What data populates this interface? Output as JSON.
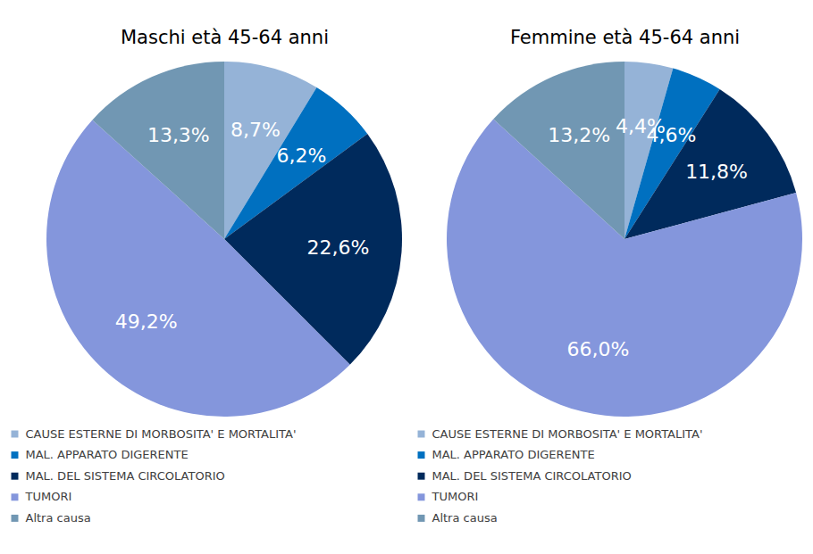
{
  "chart_data": [
    {
      "type": "pie",
      "title": "Maschi età 45-64 anni",
      "categories": [
        "CAUSE ESTERNE DI MORBOSITA' E MORTALITA'",
        "MAL. APPARATO DIGERENTE",
        "MAL. DEL SISTEMA CIRCOLATORIO",
        "TUMORI",
        "Altra causa"
      ],
      "values": [
        8.7,
        6.2,
        22.6,
        49.2,
        13.3
      ],
      "value_labels": [
        "8,7%",
        "6,2%",
        "22,6%",
        "49,2%",
        "13,3%"
      ],
      "colors": [
        "#95b3d7",
        "#0070c0",
        "#002a5c",
        "#8496dc",
        "#7197b3"
      ],
      "data_labels": true,
      "legend": "bottom"
    },
    {
      "type": "pie",
      "title": "Femmine età 45-64 anni",
      "categories": [
        "CAUSE ESTERNE DI MORBOSITA' E MORTALITA'",
        "MAL. APPARATO DIGERENTE",
        "MAL. DEL SISTEMA CIRCOLATORIO",
        "TUMORI",
        "Altra causa"
      ],
      "values": [
        4.4,
        4.6,
        11.8,
        66.0,
        13.2
      ],
      "value_labels": [
        "4,4%",
        "4,6%",
        "11,8%",
        "66,0%",
        "13,2%"
      ],
      "colors": [
        "#95b3d7",
        "#0070c0",
        "#002a5c",
        "#8496dc",
        "#7197b3"
      ],
      "data_labels": true,
      "legend": "bottom"
    }
  ]
}
